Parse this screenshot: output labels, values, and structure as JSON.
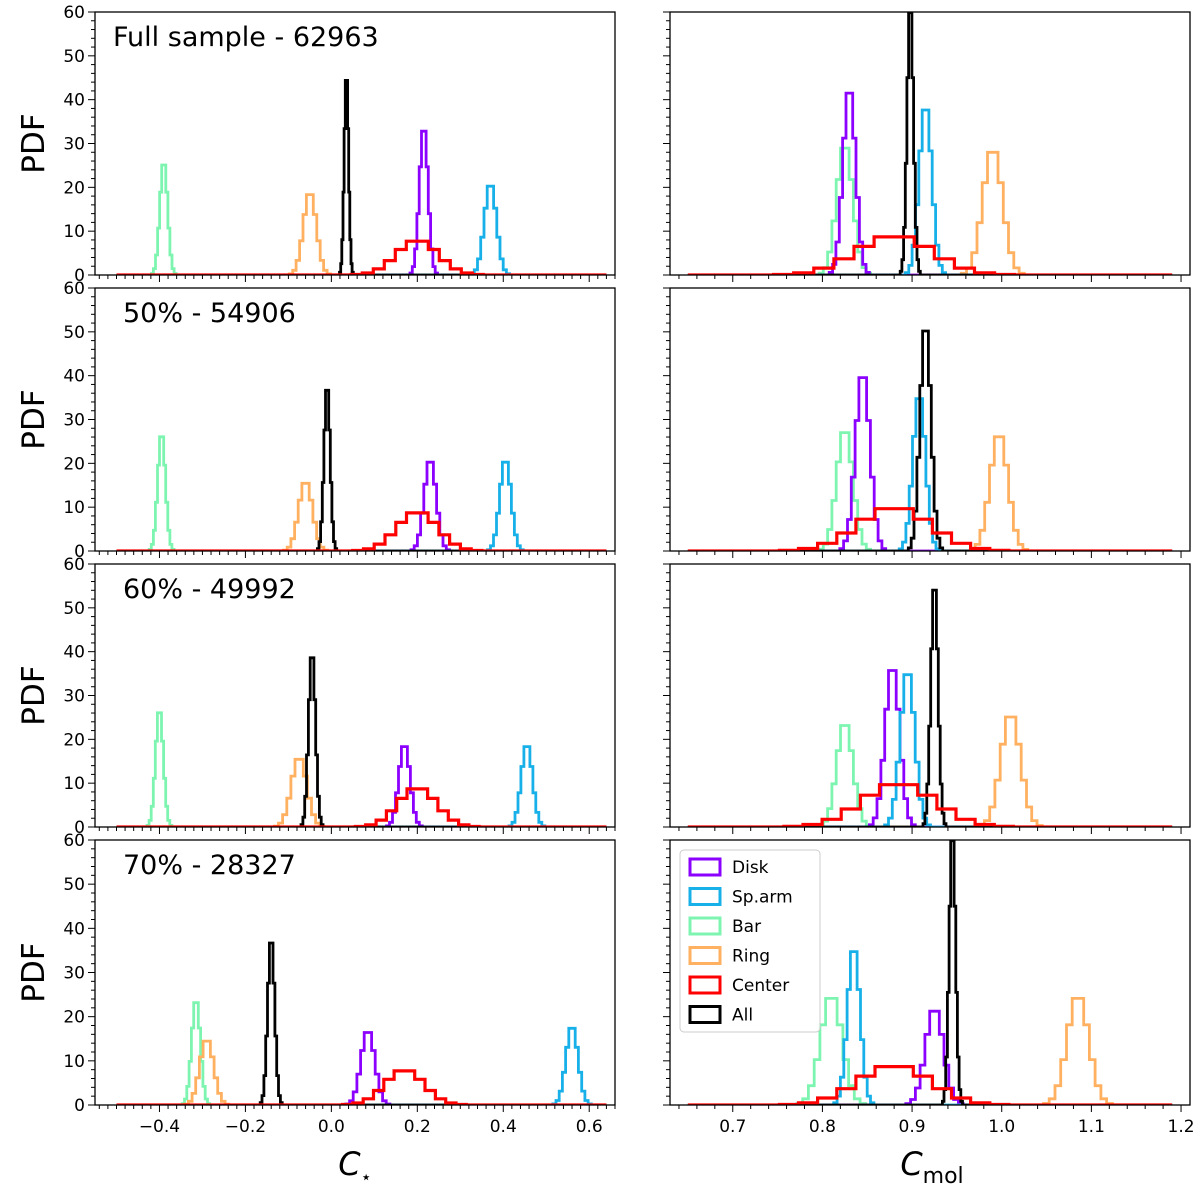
{
  "figure": {
    "ylabel": "PDF",
    "left_xlabel_base": "C",
    "left_xlabel_sub": "⋆",
    "right_xlabel_base": "C",
    "right_xlabel_sub": "mol"
  },
  "legend": {
    "placement": "upper-left of bottom-right panel",
    "entries": [
      {
        "label": "Disk",
        "color": "#8b00ff"
      },
      {
        "label": "Sp.arm",
        "color": "#18b0e8"
      },
      {
        "label": "Bar",
        "color": "#7df5b0"
      },
      {
        "label": "Ring",
        "color": "#ffb060"
      },
      {
        "label": "Center",
        "color": "#ff0000"
      },
      {
        "label": "All",
        "color": "#000000"
      }
    ]
  },
  "chart_data": {
    "type": "histogram-step",
    "rows": [
      {
        "label": "Full sample - 62963"
      },
      {
        "label": "50% - 54906"
      },
      {
        "label": "60% - 49992"
      },
      {
        "label": "70% - 28327"
      }
    ],
    "columns": [
      {
        "xlabel": "C⋆",
        "xlim": [
          -0.55,
          0.66
        ],
        "xticks": [
          -0.4,
          -0.2,
          0.0,
          0.2,
          0.4,
          0.6
        ],
        "xticklabels": [
          "−0.4",
          "−0.2",
          "0.0",
          "0.2",
          "0.4",
          "0.6"
        ],
        "baseline_range": [
          -0.5,
          0.64
        ]
      },
      {
        "xlabel": "Cmol",
        "xlim": [
          0.63,
          1.21
        ],
        "xticks": [
          0.7,
          0.8,
          0.9,
          1.0,
          1.1,
          1.2
        ],
        "xticklabels": [
          "0.7",
          "0.8",
          "0.9",
          "1.0",
          "1.1",
          "1.2"
        ],
        "baseline_range": [
          0.65,
          1.19
        ]
      }
    ],
    "ylim": [
      0,
      60
    ],
    "yticks": [
      0,
      10,
      20,
      30,
      40,
      50,
      60
    ],
    "yticklabels": [
      "0",
      "10",
      "20",
      "30",
      "40",
      "50",
      "60"
    ],
    "panels": [
      {
        "row": 0,
        "col": 0,
        "series": [
          {
            "name": "Bar",
            "center": -0.39,
            "width": 0.009,
            "peak": 26
          },
          {
            "name": "Ring",
            "center": -0.05,
            "width": 0.015,
            "peak": 19
          },
          {
            "name": "All",
            "center": 0.035,
            "width": 0.005,
            "peak": 46
          },
          {
            "name": "Disk",
            "center": 0.215,
            "width": 0.01,
            "peak": 34
          },
          {
            "name": "Sp.arm",
            "center": 0.37,
            "width": 0.014,
            "peak": 21
          },
          {
            "name": "Center",
            "center": 0.2,
            "width": 0.048,
            "peak": 8
          }
        ]
      },
      {
        "row": 0,
        "col": 1,
        "series": [
          {
            "name": "Bar",
            "center": 0.825,
            "width": 0.009,
            "peak": 30
          },
          {
            "name": "Disk",
            "center": 0.83,
            "width": 0.007,
            "peak": 43
          },
          {
            "name": "All",
            "center": 0.898,
            "width": 0.0035,
            "peak": 62
          },
          {
            "name": "Sp.arm",
            "center": 0.915,
            "width": 0.007,
            "peak": 39
          },
          {
            "name": "Ring",
            "center": 0.99,
            "width": 0.011,
            "peak": 29
          },
          {
            "name": "Center",
            "center": 0.88,
            "width": 0.042,
            "peak": 9
          }
        ]
      },
      {
        "row": 1,
        "col": 0,
        "series": [
          {
            "name": "Bar",
            "center": -0.395,
            "width": 0.009,
            "peak": 27
          },
          {
            "name": "Ring",
            "center": -0.06,
            "width": 0.016,
            "peak": 16
          },
          {
            "name": "All",
            "center": -0.01,
            "width": 0.007,
            "peak": 38
          },
          {
            "name": "Disk",
            "center": 0.23,
            "width": 0.014,
            "peak": 21
          },
          {
            "name": "Sp.arm",
            "center": 0.405,
            "width": 0.013,
            "peak": 21
          },
          {
            "name": "Center",
            "center": 0.2,
            "width": 0.047,
            "peak": 9
          }
        ]
      },
      {
        "row": 1,
        "col": 1,
        "series": [
          {
            "name": "Bar",
            "center": 0.825,
            "width": 0.009,
            "peak": 28
          },
          {
            "name": "Disk",
            "center": 0.845,
            "width": 0.008,
            "peak": 41
          },
          {
            "name": "Sp.arm",
            "center": 0.908,
            "width": 0.007,
            "peak": 36
          },
          {
            "name": "All",
            "center": 0.915,
            "width": 0.006,
            "peak": 52
          },
          {
            "name": "Ring",
            "center": 0.997,
            "width": 0.01,
            "peak": 27
          },
          {
            "name": "Center",
            "center": 0.88,
            "width": 0.04,
            "peak": 10
          }
        ]
      },
      {
        "row": 2,
        "col": 0,
        "series": [
          {
            "name": "Bar",
            "center": -0.4,
            "width": 0.009,
            "peak": 27
          },
          {
            "name": "Ring",
            "center": -0.075,
            "width": 0.018,
            "peak": 16
          },
          {
            "name": "All",
            "center": -0.045,
            "width": 0.008,
            "peak": 40
          },
          {
            "name": "Disk",
            "center": 0.17,
            "width": 0.013,
            "peak": 19
          },
          {
            "name": "Sp.arm",
            "center": 0.455,
            "width": 0.013,
            "peak": 19
          },
          {
            "name": "Center",
            "center": 0.2,
            "width": 0.045,
            "peak": 9
          }
        ]
      },
      {
        "row": 2,
        "col": 1,
        "series": [
          {
            "name": "Bar",
            "center": 0.825,
            "width": 0.009,
            "peak": 24
          },
          {
            "name": "Disk",
            "center": 0.878,
            "width": 0.008,
            "peak": 37
          },
          {
            "name": "Sp.arm",
            "center": 0.895,
            "width": 0.008,
            "peak": 36
          },
          {
            "name": "All",
            "center": 0.925,
            "width": 0.004,
            "peak": 56
          },
          {
            "name": "Ring",
            "center": 1.01,
            "width": 0.011,
            "peak": 26
          },
          {
            "name": "Center",
            "center": 0.885,
            "width": 0.04,
            "peak": 10
          }
        ]
      },
      {
        "row": 3,
        "col": 0,
        "series": [
          {
            "name": "Bar",
            "center": -0.315,
            "width": 0.01,
            "peak": 24
          },
          {
            "name": "Ring",
            "center": -0.29,
            "width": 0.016,
            "peak": 15
          },
          {
            "name": "All",
            "center": -0.14,
            "width": 0.008,
            "peak": 38
          },
          {
            "name": "Disk",
            "center": 0.085,
            "width": 0.016,
            "peak": 17
          },
          {
            "name": "Sp.arm",
            "center": 0.56,
            "width": 0.014,
            "peak": 18
          },
          {
            "name": "Center",
            "center": 0.17,
            "width": 0.045,
            "peak": 8
          }
        ]
      },
      {
        "row": 3,
        "col": 1,
        "series": [
          {
            "name": "Bar",
            "center": 0.81,
            "width": 0.012,
            "peak": 25
          },
          {
            "name": "Sp.arm",
            "center": 0.835,
            "width": 0.007,
            "peak": 36
          },
          {
            "name": "Disk",
            "center": 0.925,
            "width": 0.01,
            "peak": 22
          },
          {
            "name": "All",
            "center": 0.945,
            "width": 0.0035,
            "peak": 62
          },
          {
            "name": "Ring",
            "center": 1.085,
            "width": 0.012,
            "peak": 25
          },
          {
            "name": "Center",
            "center": 0.88,
            "width": 0.04,
            "peak": 9
          }
        ]
      }
    ]
  }
}
